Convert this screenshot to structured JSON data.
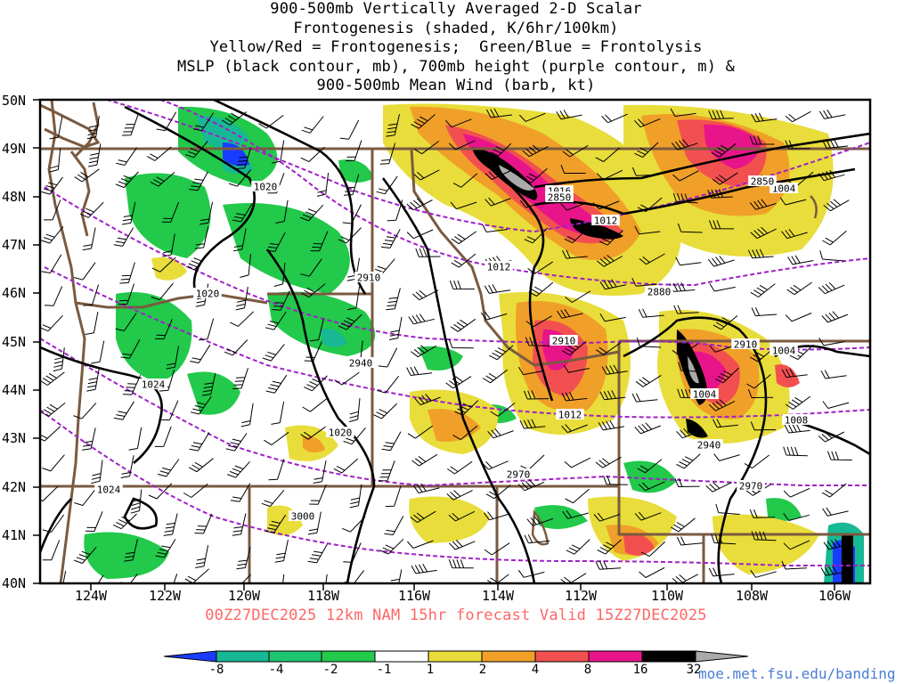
{
  "title_lines": [
    "900-500mb Vertically Averaged 2-D Scalar",
    "Frontogenesis (shaded, K/6hr/100km)",
    "Yellow/Red = Frontogenesis;  Green/Blue = Frontolysis",
    "MSLP (black contour, mb), 700mb height (purple contour, m) &",
    "900-500mb Mean Wind (barb, kt)"
  ],
  "lat_labels": [
    "50N",
    "49N",
    "48N",
    "47N",
    "46N",
    "45N",
    "44N",
    "43N",
    "42N",
    "41N",
    "40N"
  ],
  "lon_labels": [
    "124W",
    "122W",
    "120W",
    "118W",
    "116W",
    "114W",
    "112W",
    "110W",
    "108W",
    "106W"
  ],
  "footer": "00Z27DEC2025 12km NAM 15hr forecast Valid 15Z27DEC2025",
  "colorbar": {
    "labels": [
      "-8",
      "-4",
      "-2",
      "-1",
      "1",
      "2",
      "4",
      "8",
      "16",
      "32"
    ],
    "colors": [
      "#1a3cff",
      "#17b894",
      "#1fc46e",
      "#22c94a",
      "#1adc1a",
      "#ffffff",
      "#e8dd3a",
      "#f0a028",
      "#f25050",
      "#e8158a",
      "#000000",
      "#aaaaaa"
    ]
  },
  "credit": "moe.met.fsu.edu/banding",
  "contour_labels": {
    "mslp": [
      "1020",
      "1020",
      "1024",
      "1020",
      "1024",
      "1012",
      "1016",
      "1012",
      "1004",
      "1004",
      "1004",
      "1008",
      "1012"
    ],
    "height": [
      "2850",
      "2850",
      "2880",
      "2910",
      "2910",
      "2910",
      "2940",
      "2940",
      "2970",
      "2970",
      "3000"
    ]
  }
}
